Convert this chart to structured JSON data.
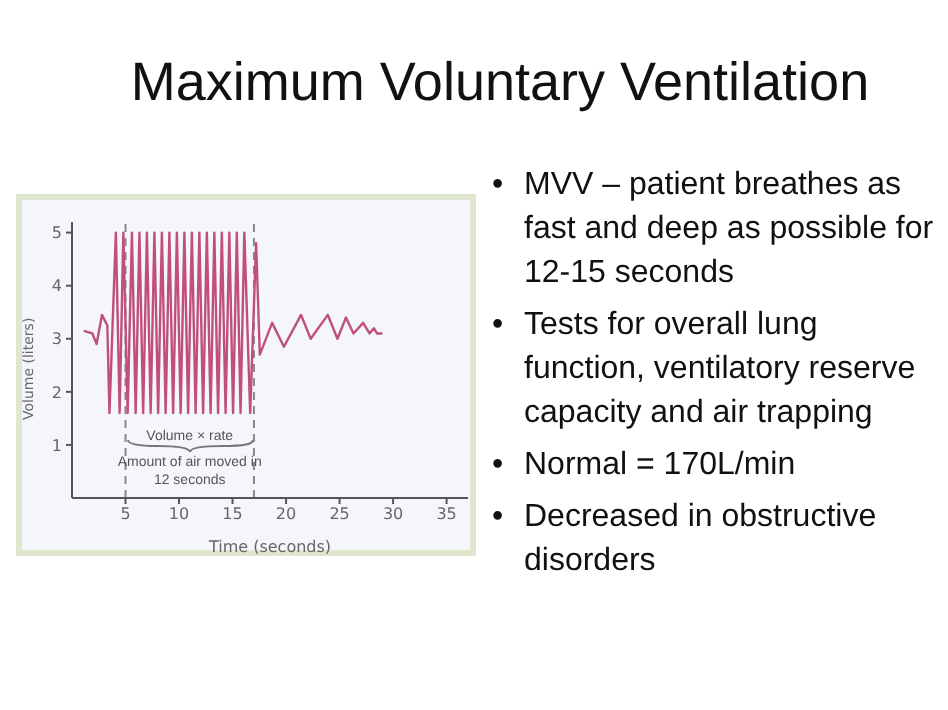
{
  "chart_data": {
    "type": "line",
    "title": "Maximum Voluntary Ventilation",
    "xlabel": "Time (seconds)",
    "ylabel": "Volume (liters)",
    "annotations": [
      "Volume × rate",
      "Amount of air moved in 12 seconds",
      "• MVV – patient breathes as fast and deep as possible for 12-15 seconds",
      "• Tests for overall lung function, ventilatory reserve capacity and air trapping",
      "• Normal = 170L/min",
      "• Decreased in obstructive disorders"
    ],
    "x": [
      1.1,
      1.9,
      2.3,
      2.8,
      3.3,
      3.5,
      4.1,
      4.45,
      4.8,
      5.2,
      5.6,
      5.95,
      6.3,
      6.65,
      7.0,
      7.35,
      7.7,
      8.05,
      8.4,
      8.75,
      9.1,
      9.45,
      9.8,
      10.15,
      10.5,
      10.85,
      11.2,
      11.55,
      11.9,
      12.25,
      12.6,
      12.95,
      13.3,
      13.65,
      14.0,
      14.35,
      14.7,
      15.05,
      15.4,
      15.75,
      16.1,
      16.65,
      17.2,
      17.55,
      18.7,
      19.8,
      21.4,
      22.3,
      23.9,
      24.8,
      25.6,
      26.3,
      27.2,
      27.8,
      28.2,
      28.5,
      29.0
    ],
    "series": [
      {
        "color": "#c0507a",
        "values": [
          3.15,
          3.1,
          2.9,
          3.45,
          3.25,
          1.6,
          5.0,
          1.6,
          5.0,
          1.6,
          5.0,
          1.6,
          5.0,
          1.6,
          5.0,
          1.6,
          5.0,
          1.6,
          5.0,
          1.6,
          5.0,
          1.6,
          5.0,
          1.6,
          5.0,
          1.6,
          5.0,
          1.6,
          5.0,
          1.6,
          5.0,
          1.6,
          5.0,
          1.6,
          5.0,
          1.6,
          5.0,
          1.6,
          5.0,
          1.6,
          5.0,
          1.6,
          4.8,
          2.7,
          3.3,
          2.85,
          3.45,
          3.0,
          3.45,
          3.0,
          3.4,
          3.1,
          3.3,
          3.1,
          3.2,
          3.1,
          3.1
        ]
      }
    ],
    "xlim": [
      0,
      37
    ],
    "xticks": [
      5,
      10,
      15,
      20,
      25,
      30,
      35
    ],
    "ylim": [
      0,
      5.2
    ],
    "yticks": [
      1,
      2,
      3,
      4,
      5
    ],
    "ref_lines": [
      {
        "axis": "x",
        "value": 5,
        "color": "#888888",
        "line_style": "dashed"
      },
      {
        "axis": "x",
        "value": 17,
        "color": "#888888",
        "line_style": "dashed"
      }
    ],
    "grid": false,
    "legend": false,
    "marker": "none",
    "line_style": "solid"
  }
}
